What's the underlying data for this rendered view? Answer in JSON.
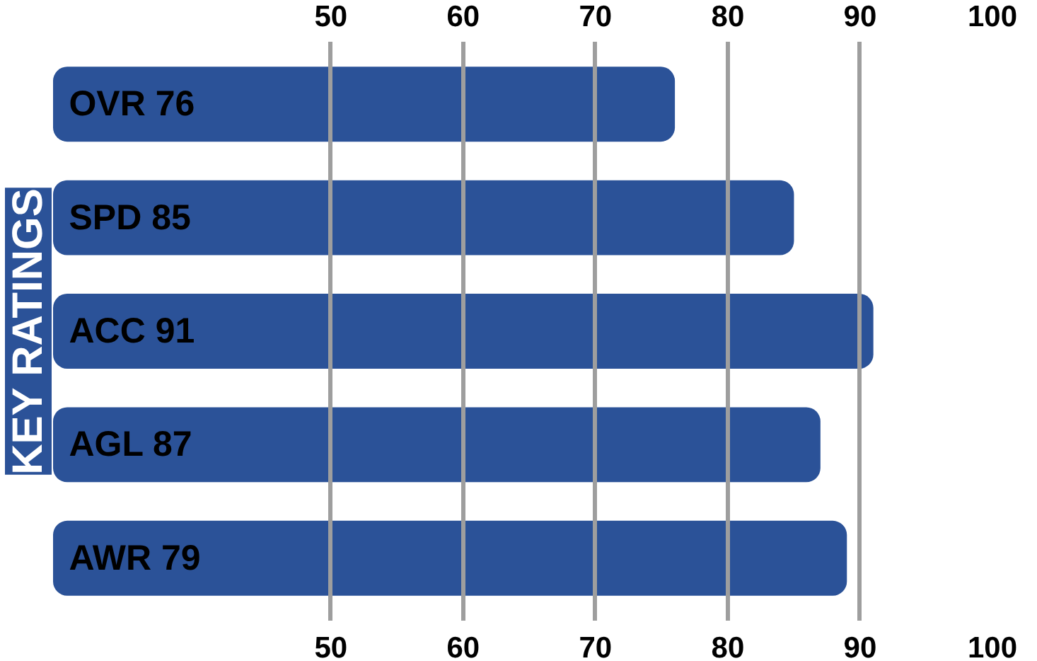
{
  "chart_data": {
    "type": "bar",
    "orientation": "horizontal",
    "title": "KEY RATINGS",
    "categories": [
      "OVR 76",
      "SPD 85",
      "ACC 91",
      "AGL 87",
      "AWR 79"
    ],
    "values": [
      76,
      85,
      91,
      87,
      89
    ],
    "color": "#2b5298",
    "xlim": [
      29,
      100
    ],
    "xticks": [
      50,
      60,
      70,
      80,
      90,
      100
    ],
    "x2lim": [
      29,
      100
    ],
    "x2ticks": [
      50,
      60,
      70,
      80,
      90,
      100
    ],
    "grid": "x"
  }
}
